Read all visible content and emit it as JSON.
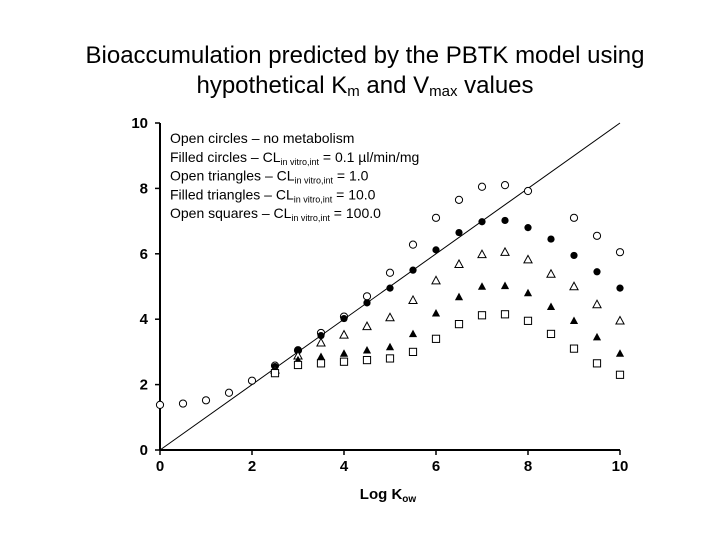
{
  "title": {
    "line1": "Bioaccumulation predicted by the PBTK model using",
    "line2_a": "hypothetical K",
    "line2_a_sub": "m",
    "line2_b": " and V",
    "line2_b_sub": "max",
    "line2_c": " values"
  },
  "legend": [
    {
      "pre": "Open circles – no metabolism",
      "sub": "",
      "post": ""
    },
    {
      "pre": "Filled circles – CL",
      "sub": "in vitro,int",
      "post": " = 0.1 µl/min/mg"
    },
    {
      "pre": "Open triangles – CL",
      "sub": "in vitro,int",
      "post": "  = 1.0"
    },
    {
      "pre": "Filled triangles – CL",
      "sub": "in vitro,int",
      "post": " = 10.0"
    },
    {
      "pre": "Open squares – CL",
      "sub": "in vitro,int",
      "post": " = 100.0"
    }
  ],
  "chart_data": {
    "type": "scatter",
    "xlabel": "Log K",
    "xlabel_sub": "ow",
    "ylabel": "",
    "xlim": [
      0,
      10
    ],
    "ylim": [
      0,
      10
    ],
    "xticks": [
      0,
      2,
      4,
      6,
      8,
      10
    ],
    "yticks": [
      0,
      2,
      4,
      6,
      8,
      10
    ],
    "reference_line": {
      "x": [
        0,
        10
      ],
      "y": [
        0,
        10
      ]
    },
    "series": [
      {
        "marker": "open-circle",
        "x": [
          0,
          0.5,
          1,
          1.5,
          2,
          2.5,
          3,
          3.5,
          4,
          4.5,
          5,
          5.5,
          6,
          6.5,
          7,
          7.5,
          8,
          9,
          9.5,
          10
        ],
        "y": [
          1.38,
          1.42,
          1.52,
          1.75,
          2.12,
          2.58,
          3.05,
          3.58,
          4.08,
          4.7,
          5.42,
          6.28,
          7.1,
          7.65,
          8.05,
          8.1,
          7.92,
          7.1,
          6.55,
          6.05
        ]
      },
      {
        "marker": "filled-circle",
        "x": [
          2.5,
          3,
          3.5,
          4,
          4.5,
          5,
          5.5,
          6,
          6.5,
          7,
          7.5,
          8,
          8.5,
          9,
          9.5,
          10
        ],
        "y": [
          2.55,
          3.05,
          3.5,
          4.02,
          4.5,
          4.95,
          5.5,
          6.12,
          6.65,
          6.98,
          7.02,
          6.8,
          6.45,
          5.95,
          5.45,
          4.95
        ]
      },
      {
        "marker": "open-triangle",
        "x": [
          2.5,
          3,
          3.5,
          4,
          4.5,
          5,
          5.5,
          6,
          6.5,
          7,
          7.5,
          8,
          8.5,
          9,
          9.5,
          10
        ],
        "y": [
          2.45,
          2.88,
          3.28,
          3.52,
          3.78,
          4.05,
          4.58,
          5.18,
          5.68,
          5.98,
          6.05,
          5.82,
          5.38,
          5.0,
          4.45,
          3.95
        ]
      },
      {
        "marker": "filled-triangle",
        "x": [
          2.5,
          3,
          3.5,
          4,
          4.5,
          5,
          5.5,
          6,
          6.5,
          7,
          7.5,
          8,
          8.5,
          9,
          9.5,
          10
        ],
        "y": [
          2.42,
          2.75,
          2.85,
          2.95,
          3.05,
          3.15,
          3.55,
          4.18,
          4.68,
          5.0,
          5.02,
          4.8,
          4.38,
          3.95,
          3.45,
          2.95
        ]
      },
      {
        "marker": "open-square",
        "x": [
          2.5,
          3,
          3.5,
          4,
          4.5,
          5,
          5.5,
          6,
          6.5,
          7,
          7.5,
          8,
          8.5,
          9,
          9.5,
          10
        ],
        "y": [
          2.35,
          2.6,
          2.65,
          2.7,
          2.75,
          2.8,
          3.0,
          3.4,
          3.85,
          4.12,
          4.15,
          3.95,
          3.55,
          3.1,
          2.65,
          2.3
        ]
      }
    ],
    "grid": false,
    "legend_placement": "top-left"
  }
}
